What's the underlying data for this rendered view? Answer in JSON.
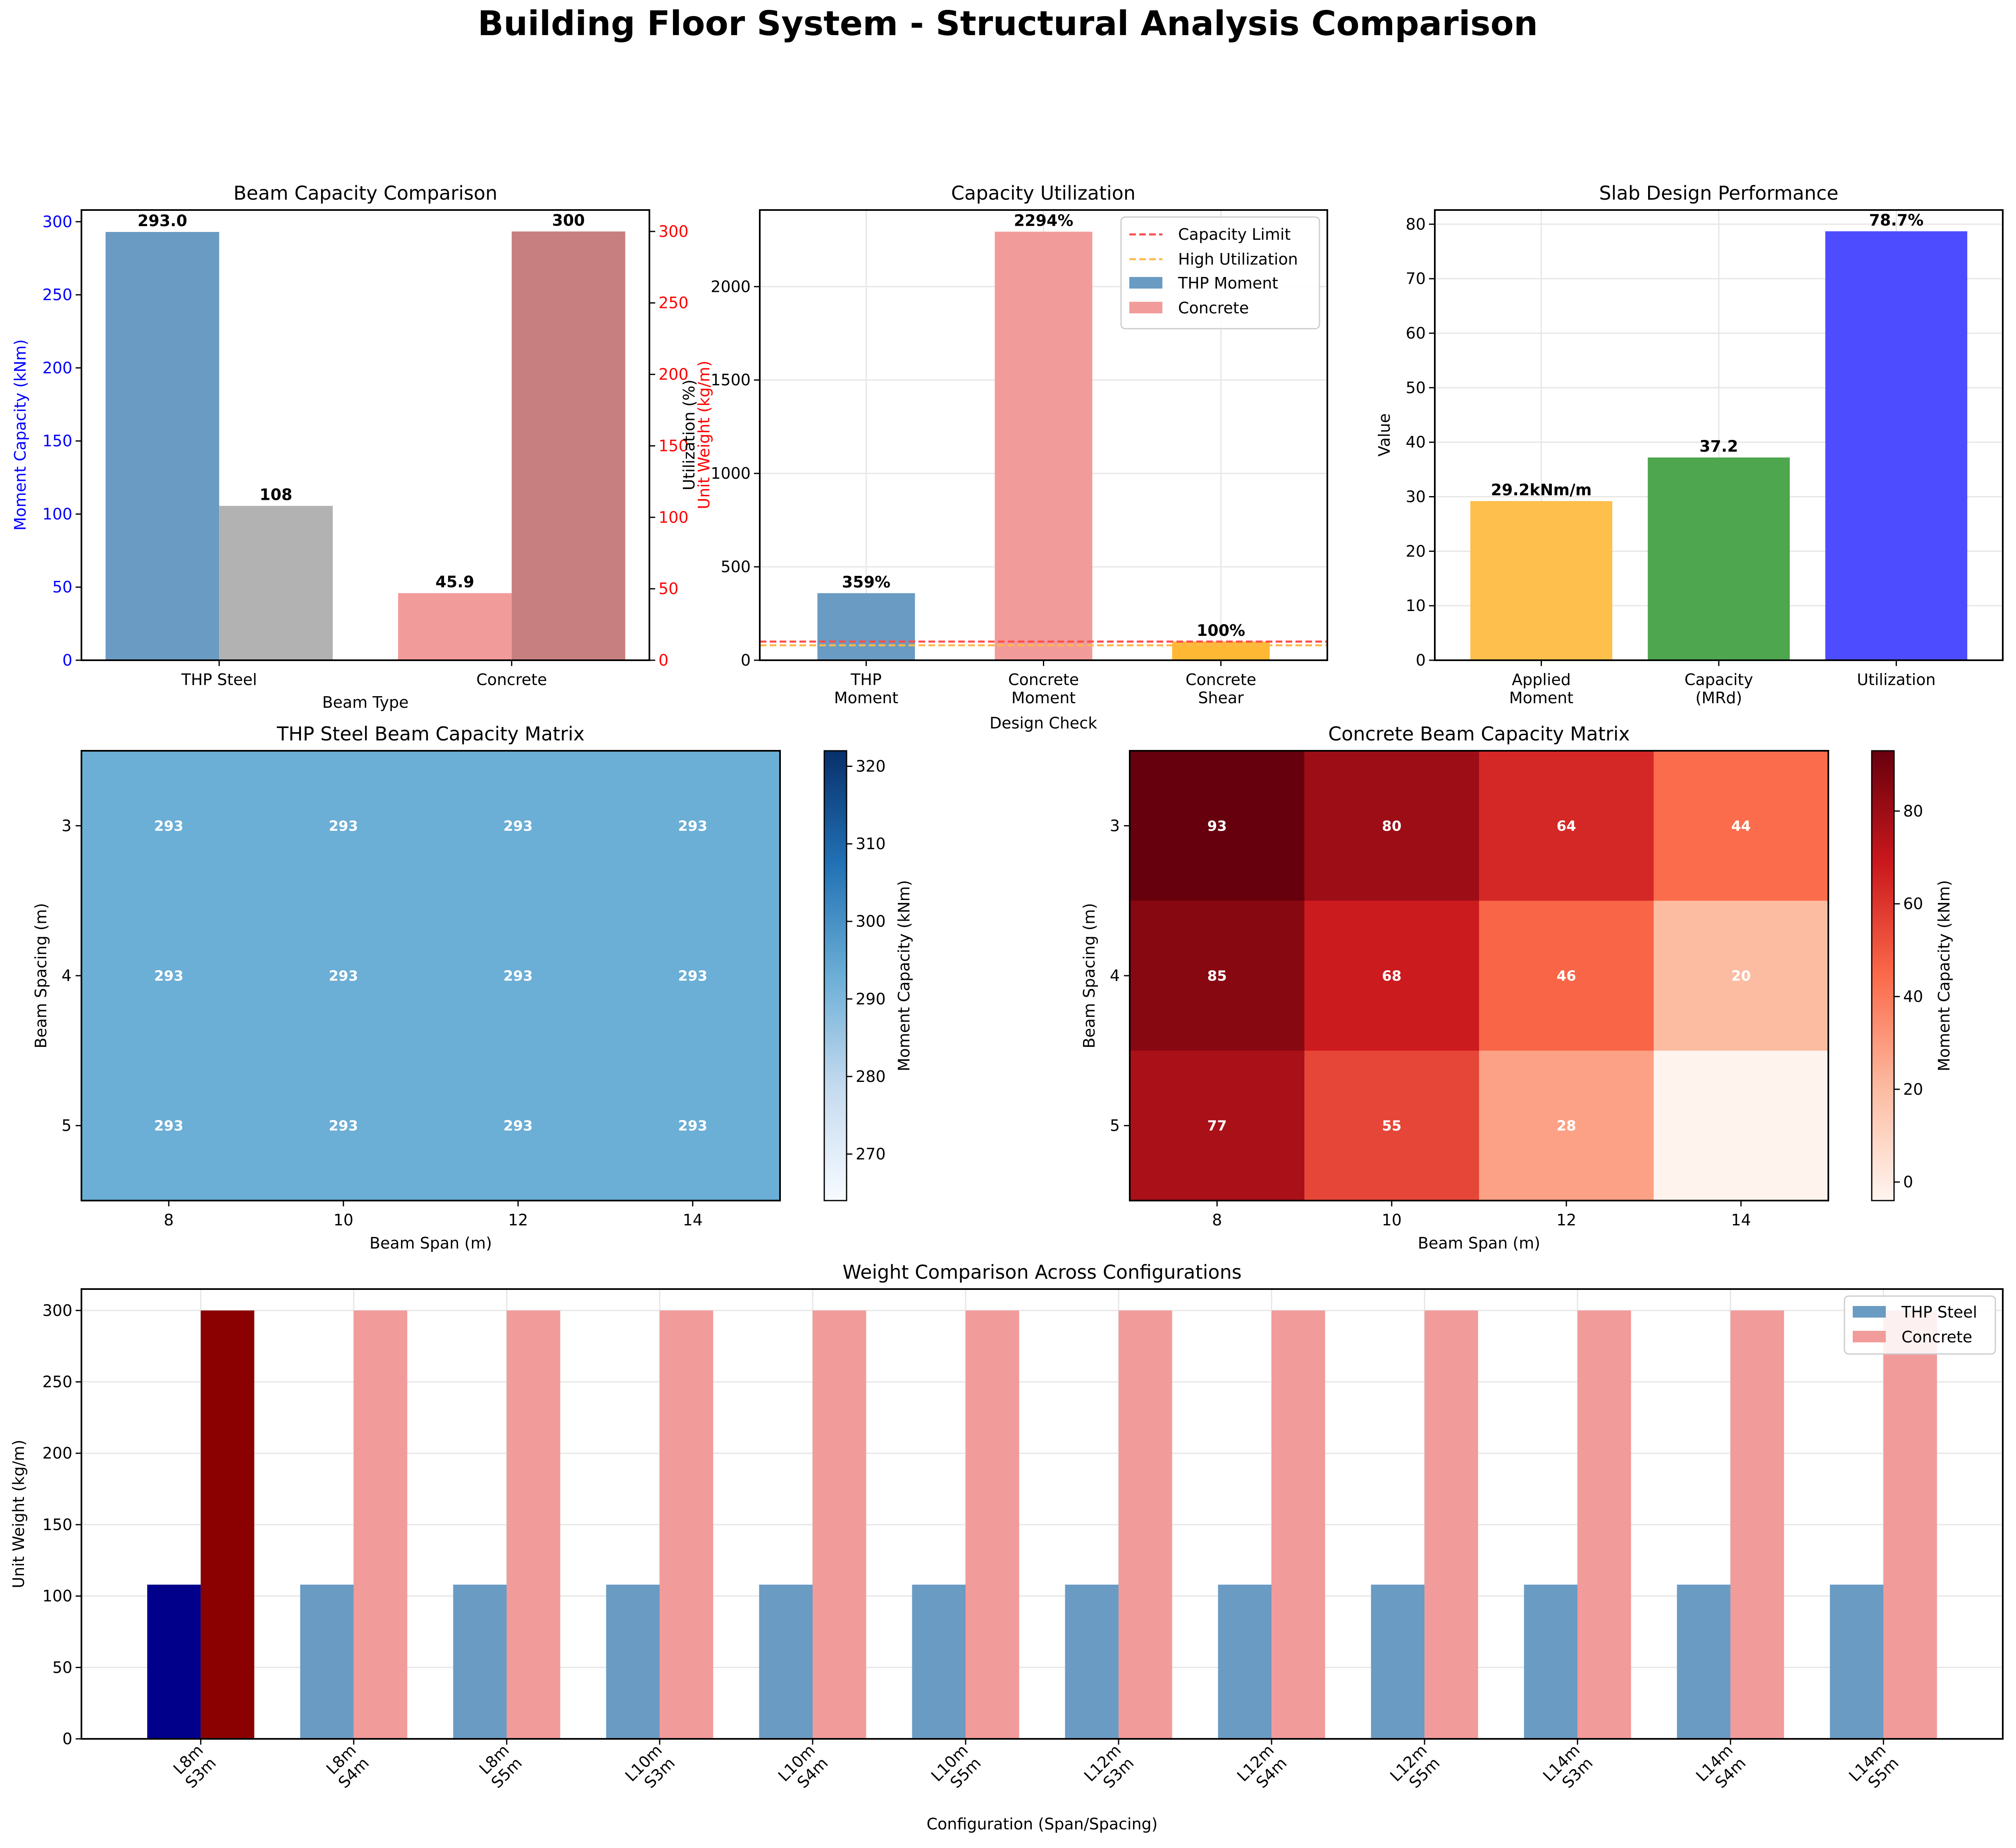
{
  "figure": {
    "title": "Building Floor System - Structural Analysis Comparison"
  },
  "colors": {
    "thp": "#6a9bc3",
    "concrete": "#f29b9b",
    "steel_gray": "#b2b2b2",
    "weight_red": "#c87f80",
    "orange": "#ffbf4d",
    "green": "#4ea64e",
    "blue": "#4d4dff",
    "dark_navy": "#00008b",
    "dark_red": "#8b0000",
    "axis_blue": "#0000ff",
    "axis_red": "#ff0000",
    "limit_red": "#ff4d4d",
    "limit_orange": "#ffb84d"
  },
  "chart_data": [
    {
      "id": "beam_capacity",
      "type": "bar",
      "title": "Beam Capacity Comparison",
      "xlabel": "Beam Type",
      "ylabel": "Moment Capacity (kNm)",
      "ylabel_right": "Unit Weight (kg/m)",
      "categories": [
        "THP Steel",
        "Concrete"
      ],
      "series": [
        {
          "axis": "left",
          "values": [
            293.0,
            45.9
          ],
          "labels": [
            "293.0",
            "45.9"
          ],
          "colors": [
            "#6a9bc3",
            "#f29b9b"
          ]
        },
        {
          "axis": "right",
          "values": [
            108,
            300
          ],
          "labels": [
            "108",
            "300"
          ],
          "colors": [
            "#b2b2b2",
            "#c87f80"
          ]
        }
      ],
      "ylim": [
        0,
        308
      ],
      "yticks": [
        0,
        50,
        100,
        150,
        200,
        250,
        300
      ],
      "ylim_right": [
        0,
        315
      ],
      "yticks_right": [
        0,
        50,
        100,
        150,
        200,
        250,
        300
      ],
      "grid": false
    },
    {
      "id": "utilization",
      "type": "bar",
      "title": "Capacity Utilization",
      "xlabel": "Design Check",
      "ylabel": "Utilization (%)",
      "categories": [
        "THP\nMoment",
        "Concrete\nMoment",
        "Concrete\nShear"
      ],
      "values": [
        359,
        2294,
        100
      ],
      "labels": [
        "359%",
        "2294%",
        "100%"
      ],
      "colors": [
        "#6a9bc3",
        "#f29b9b",
        "#ffb833"
      ],
      "ylim": [
        0,
        2410
      ],
      "yticks": [
        0,
        500,
        1000,
        1500,
        2000
      ],
      "hlines": [
        {
          "y": 100,
          "label": "Capacity Limit",
          "color": "#ff4d4d"
        },
        {
          "y": 80,
          "label": "High Utilization",
          "color": "#ffb84d"
        }
      ],
      "legend": [
        "Capacity Limit",
        "High Utilization",
        "THP Moment",
        "Concrete"
      ],
      "legend_position": "top-right",
      "grid": true
    },
    {
      "id": "slab",
      "type": "bar",
      "title": "Slab Design Performance",
      "ylabel": "Value",
      "categories": [
        "Applied\nMoment",
        "Capacity\n(MRd)",
        "Utilization"
      ],
      "values": [
        29.2,
        37.2,
        78.7
      ],
      "labels": [
        "29.2kNm/m",
        "37.2",
        "78.7%"
      ],
      "colors": [
        "#ffbf4d",
        "#4ea64e",
        "#4d4dff"
      ],
      "ylim": [
        0,
        82.6
      ],
      "yticks": [
        0,
        10,
        20,
        30,
        40,
        50,
        60,
        70,
        80
      ],
      "grid": true
    },
    {
      "id": "thp_matrix",
      "type": "heatmap",
      "title": "THP Steel Beam Capacity Matrix",
      "xlabel": "Beam Span (m)",
      "ylabel": "Beam Spacing (m)",
      "x": [
        8,
        10,
        12,
        14
      ],
      "y": [
        3,
        4,
        5
      ],
      "values": [
        [
          293,
          293,
          293,
          293
        ],
        [
          293,
          293,
          293,
          293
        ],
        [
          293,
          293,
          293,
          293
        ]
      ],
      "colorbar_label": "Moment Capacity (kNm)",
      "colorbar_range": [
        264,
        322
      ],
      "colorbar_ticks": [
        270,
        280,
        290,
        300,
        310,
        320
      ],
      "colormap": "Blues"
    },
    {
      "id": "concrete_matrix",
      "type": "heatmap",
      "title": "Concrete Beam Capacity Matrix",
      "xlabel": "Beam Span (m)",
      "ylabel": "Beam Spacing (m)",
      "x": [
        8,
        10,
        12,
        14
      ],
      "y": [
        3,
        4,
        5
      ],
      "values": [
        [
          93,
          80,
          64,
          44
        ],
        [
          85,
          68,
          46,
          20
        ],
        [
          77,
          55,
          28,
          -3
        ]
      ],
      "value_labels": [
        [
          "93",
          "80",
          "64",
          "44"
        ],
        [
          "85",
          "68",
          "46",
          "20"
        ],
        [
          "77",
          "55",
          "28",
          ""
        ]
      ],
      "colorbar_label": "Moment Capacity (kNm)",
      "colorbar_range": [
        -4,
        93
      ],
      "colorbar_ticks": [
        0,
        20,
        40,
        60,
        80
      ],
      "colormap": "Reds"
    },
    {
      "id": "weight_comparison",
      "type": "bar",
      "title": "Weight Comparison Across Configurations",
      "xlabel": "Configuration (Span/Spacing)",
      "ylabel": "Unit Weight (kg/m)",
      "categories": [
        "L8m\nS3m",
        "L8m\nS4m",
        "L8m\nS5m",
        "L10m\nS3m",
        "L10m\nS4m",
        "L10m\nS5m",
        "L12m\nS3m",
        "L12m\nS4m",
        "L12m\nS5m",
        "L14m\nS3m",
        "L14m\nS4m",
        "L14m\nS5m"
      ],
      "series": [
        {
          "name": "THP Steel",
          "values": [
            108,
            108,
            108,
            108,
            108,
            108,
            108,
            108,
            108,
            108,
            108,
            108
          ]
        },
        {
          "name": "Concrete",
          "values": [
            300,
            300,
            300,
            300,
            300,
            300,
            300,
            300,
            300,
            300,
            300,
            300
          ]
        }
      ],
      "highlighted_index": 0,
      "ylim": [
        0,
        315
      ],
      "yticks": [
        0,
        50,
        100,
        150,
        200,
        250,
        300
      ],
      "legend_position": "top-right",
      "grid": true
    }
  ]
}
